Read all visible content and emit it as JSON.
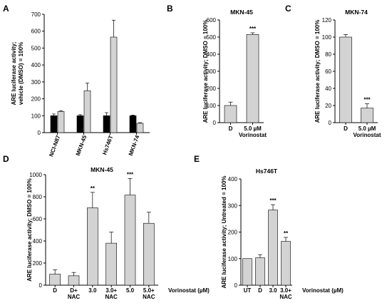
{
  "chart_data": [
    {
      "panel": "A",
      "type": "bar",
      "title": "",
      "ylabel_lines": [
        "ARE luciferase activity;",
        "vehicle (DMSO) = 100%"
      ],
      "ylim": [
        0,
        700
      ],
      "yticks": [
        0,
        100,
        200,
        300,
        400,
        500,
        600,
        700
      ],
      "categories": [
        "NCI-N87",
        "MKN-45",
        "Hs746T",
        "MKN-74"
      ],
      "bar_colors": [
        "#000000",
        "#d3d3d3"
      ],
      "values": [
        [
          100,
          125
        ],
        [
          100,
          248
        ],
        [
          100,
          565
        ],
        [
          100,
          55
        ]
      ],
      "errors": [
        [
          10,
          5
        ],
        [
          6,
          45
        ],
        [
          18,
          100
        ],
        [
          4,
          4
        ]
      ],
      "significance": [
        [
          "",
          ""
        ],
        [
          "",
          ""
        ],
        [
          "",
          ""
        ],
        [
          "",
          ""
        ]
      ]
    },
    {
      "panel": "B",
      "type": "bar",
      "title": "MKN-45",
      "ylabel_lines": [
        "ARE luciferase activity; DMSO = 100%"
      ],
      "ylim": [
        0,
        600
      ],
      "yticks": [
        0,
        100,
        200,
        300,
        400,
        500,
        600
      ],
      "categories": [
        [
          "D"
        ],
        [
          "5.0 µM",
          "Vorinostat"
        ]
      ],
      "values": [
        100,
        515
      ],
      "errors": [
        20,
        10
      ],
      "significance": [
        "",
        "***"
      ]
    },
    {
      "panel": "C",
      "type": "bar",
      "title": "MKN-74",
      "ylabel_lines": [
        "ARE luciferase activity; DMSO = 100%"
      ],
      "ylim": [
        0,
        120
      ],
      "yticks": [
        0,
        20,
        40,
        60,
        80,
        100,
        120
      ],
      "categories": [
        [
          "D"
        ],
        [
          "5.0 µM",
          "Vorinostat"
        ]
      ],
      "values": [
        100,
        17
      ],
      "errors": [
        3,
        5
      ],
      "significance": [
        "",
        "***"
      ]
    },
    {
      "panel": "D",
      "type": "bar",
      "title": "MKN-45",
      "ylabel_lines": [
        "ARE luciferase activity; DMSO = 100%"
      ],
      "ylim": [
        0,
        1000
      ],
      "yticks": [
        0,
        200,
        400,
        600,
        800,
        1000
      ],
      "categories": [
        [
          "D"
        ],
        [
          "D+",
          "NAC"
        ],
        [
          "3.0"
        ],
        [
          "3.0+",
          "NAC"
        ],
        [
          "5.0"
        ],
        [
          "5.0+",
          "NAC"
        ]
      ],
      "xlabel": "Vorinostat (µM)",
      "values": [
        100,
        85,
        700,
        380,
        815,
        560
      ],
      "errors": [
        40,
        30,
        140,
        100,
        150,
        100
      ],
      "significance": [
        "",
        "",
        "**",
        "",
        "***",
        ""
      ]
    },
    {
      "panel": "E",
      "type": "bar",
      "title": "Hs746T",
      "ylabel_lines": [
        "ARE luciferase activity; Untreated = 100%"
      ],
      "ylim": [
        0,
        400
      ],
      "yticks": [
        0,
        100,
        200,
        300,
        400
      ],
      "categories": [
        [
          "UT"
        ],
        [
          "D"
        ],
        [
          "3.0"
        ],
        [
          "3.0+",
          "NAC"
        ]
      ],
      "xlabel": "Vorinostat (µM)",
      "values": [
        100,
        103,
        283,
        165
      ],
      "errors": [
        0,
        12,
        20,
        15
      ],
      "significance": [
        "",
        "",
        "***",
        "**"
      ]
    }
  ]
}
